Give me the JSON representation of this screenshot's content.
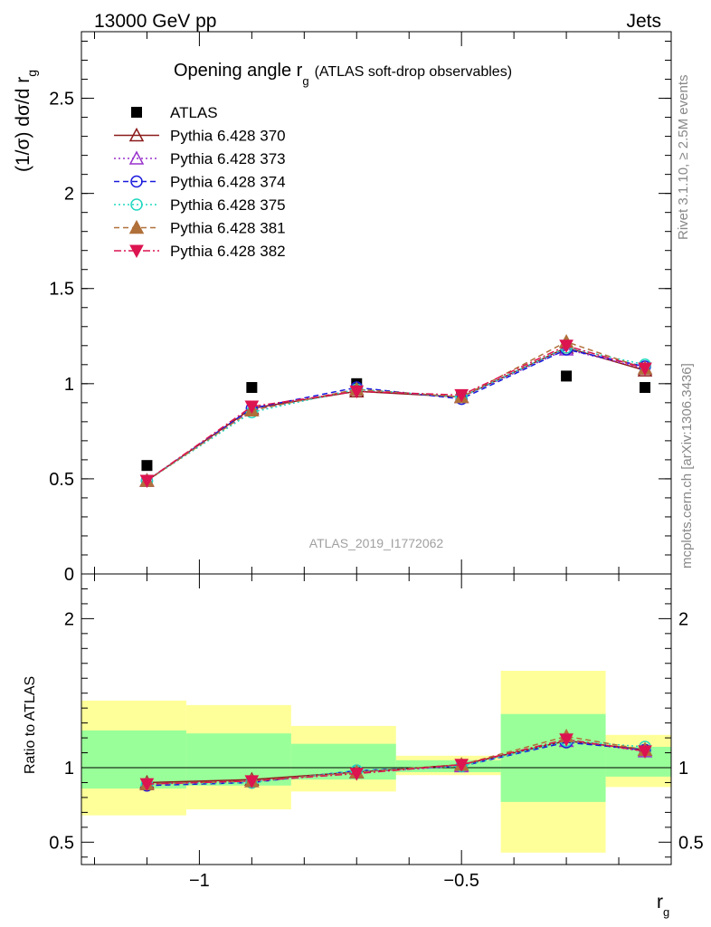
{
  "header": {
    "left": "13000 GeV pp",
    "right": "Jets"
  },
  "side_labels": {
    "rivet": "Rivet 3.1.10, ≥ 2.5M events",
    "mcplots": "mcplots.cern.ch [arXiv:1306.3436]"
  },
  "watermark": "ATLAS_2019_I1772062",
  "chart_data": [
    {
      "type": "scatter",
      "title_main": "Opening angle r",
      "title_sub": "g",
      "title_tail": "(ATLAS soft-drop observables)",
      "ylabel_main": "(1/σ) dσ/d r",
      "ylabel_sub": "g",
      "ylim": [
        0,
        2.85
      ],
      "yticks": [
        "0",
        "0.5",
        "1",
        "1.5",
        "2",
        "2.5"
      ],
      "x": [
        -1.1,
        -0.9,
        -0.7,
        -0.5,
        -0.3,
        -0.15
      ],
      "x_edges": [
        -1.225,
        -1.025,
        -0.825,
        -0.625,
        -0.425,
        -0.225,
        -0.1
      ],
      "series": [
        {
          "name": "ATLAS",
          "color": "#000000",
          "marker": "square-filled",
          "dash": "none",
          "values": [
            0.57,
            0.98,
            1.0,
            0.93,
            1.04,
            0.98
          ]
        },
        {
          "name": "Pythia 6.428 370",
          "color": "#8b1a1a",
          "marker": "triangle-open",
          "dash": "solid",
          "values": [
            0.49,
            0.87,
            0.96,
            0.93,
            1.19,
            1.07
          ]
        },
        {
          "name": "Pythia 6.428 373",
          "color": "#9932cc",
          "marker": "triangle-open",
          "dash": "dotted",
          "values": [
            0.49,
            0.86,
            0.97,
            0.93,
            1.18,
            1.08
          ]
        },
        {
          "name": "Pythia 6.428 374",
          "color": "#1a1add",
          "marker": "circle-open",
          "dash": "dashed",
          "values": [
            0.49,
            0.87,
            0.98,
            0.92,
            1.18,
            1.09
          ]
        },
        {
          "name": "Pythia 6.428 375",
          "color": "#20d8c0",
          "marker": "circle-open",
          "dash": "dotted",
          "values": [
            0.49,
            0.85,
            0.97,
            0.93,
            1.19,
            1.1
          ]
        },
        {
          "name": "Pythia 6.428 381",
          "color": "#b0703a",
          "marker": "triangle-filled",
          "dash": "dashed",
          "values": [
            0.49,
            0.86,
            0.97,
            0.93,
            1.22,
            1.08
          ]
        },
        {
          "name": "Pythia 6.428 382",
          "color": "#dc1450",
          "marker": "triangle-down-filled",
          "dash": "dashdot",
          "values": [
            0.49,
            0.88,
            0.96,
            0.94,
            1.2,
            1.08
          ]
        }
      ]
    },
    {
      "type": "scatter",
      "ylabel": "Ratio to ATLAS",
      "xlabel_main": "r",
      "xlabel_sub": "g",
      "ylim": [
        0.35,
        2.3
      ],
      "yticks": [
        "0.5",
        "1",
        "2"
      ],
      "xlim": [
        -1.225,
        -0.1
      ],
      "xticks": [
        "−1",
        "−0.5"
      ],
      "bands": {
        "yellow": [
          [
            0.68,
            1.45
          ],
          [
            0.72,
            1.42
          ],
          [
            0.84,
            1.28
          ],
          [
            0.95,
            1.08
          ],
          [
            0.43,
            1.65
          ],
          [
            0.87,
            1.22
          ]
        ],
        "green": [
          [
            0.86,
            1.25
          ],
          [
            0.88,
            1.23
          ],
          [
            0.92,
            1.16
          ],
          [
            0.97,
            1.05
          ],
          [
            0.77,
            1.36
          ],
          [
            0.94,
            1.14
          ]
        ]
      },
      "series": [
        {
          "name": "Pythia 6.428 370",
          "values": [
            0.9,
            0.92,
            0.97,
            1.02,
            1.18,
            1.12
          ]
        },
        {
          "name": "Pythia 6.428 373",
          "values": [
            0.89,
            0.91,
            0.97,
            1.01,
            1.18,
            1.11
          ]
        },
        {
          "name": "Pythia 6.428 374",
          "values": [
            0.88,
            0.9,
            0.98,
            1.01,
            1.17,
            1.12
          ]
        },
        {
          "name": "Pythia 6.428 375",
          "values": [
            0.89,
            0.9,
            0.98,
            1.01,
            1.18,
            1.14
          ]
        },
        {
          "name": "Pythia 6.428 381",
          "values": [
            0.89,
            0.91,
            0.97,
            1.02,
            1.21,
            1.12
          ]
        },
        {
          "name": "Pythia 6.428 382",
          "values": [
            0.89,
            0.91,
            0.96,
            1.02,
            1.19,
            1.11
          ]
        }
      ]
    }
  ]
}
